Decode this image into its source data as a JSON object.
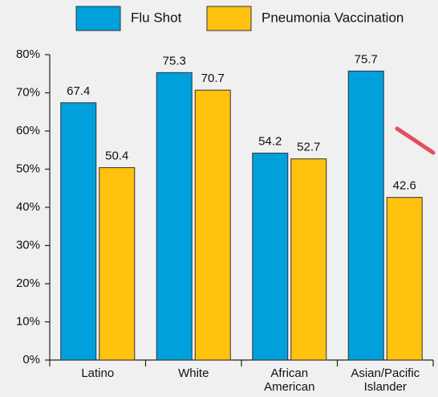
{
  "chart_data": {
    "type": "bar",
    "categories": [
      "Latino",
      "White",
      "African American",
      "Asian/Pacific Islander"
    ],
    "series": [
      {
        "name": "Flu Shot",
        "color": "#00a0dc",
        "values": [
          67.4,
          75.3,
          54.2,
          75.7
        ]
      },
      {
        "name": "Pneumonia Vaccination",
        "color": "#ffc20e",
        "values": [
          50.4,
          70.7,
          52.7,
          42.6
        ]
      }
    ],
    "ylim": [
      0,
      80
    ],
    "yticks": [
      {
        "value": 0,
        "label": "0%"
      },
      {
        "value": 10,
        "label": "10%"
      },
      {
        "value": 20,
        "label": "20%"
      },
      {
        "value": 30,
        "label": "30%"
      },
      {
        "value": 40,
        "label": "40%"
      },
      {
        "value": 50,
        "label": "50%"
      },
      {
        "value": 60,
        "label": "60%"
      },
      {
        "value": 70,
        "label": "70%"
      },
      {
        "value": 80,
        "label": "80%"
      }
    ],
    "legend": "top"
  }
}
